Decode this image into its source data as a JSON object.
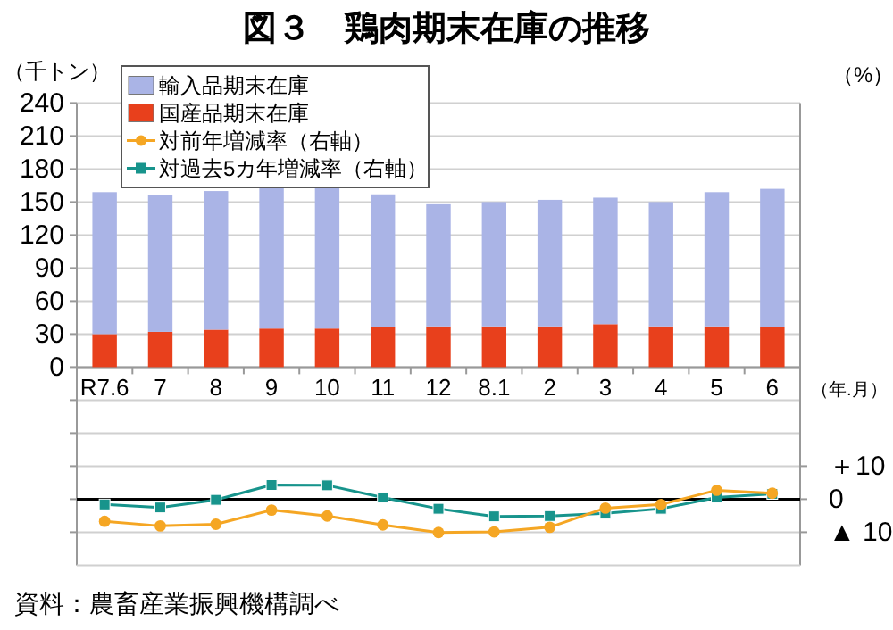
{
  "chart_data": {
    "type": "bar",
    "title": "図３　鶏肉期末在庫の推移",
    "xlabel": "（年.月）",
    "ylabel": "（千トン）",
    "y2label": "（%）",
    "annotations": [
      "資料：農畜産業振興機構調べ"
    ],
    "categories": [
      "R7.6",
      "7",
      "8",
      "9",
      "10",
      "11",
      "12",
      "8.1",
      "2",
      "3",
      "4",
      "5",
      "6"
    ],
    "stacked": true,
    "series": [
      {
        "name": "国産品期末在庫",
        "color": "#e8401c",
        "values": [
          30,
          32,
          34,
          35,
          35,
          36,
          37,
          37,
          37,
          39,
          37,
          37,
          36
        ]
      },
      {
        "name": "輸入品期末在庫",
        "color": "#aab4e6",
        "values": [
          129,
          124,
          126,
          130,
          130,
          121,
          111,
          113,
          115,
          115,
          113,
          122,
          126
        ]
      },
      {
        "name": "対前年増減率（右軸）",
        "type": "line",
        "axis": "y2",
        "marker": "circle",
        "color": "#f5a623",
        "values": [
          -6.7,
          -8.1,
          -7.6,
          -3.3,
          -5.1,
          -7.8,
          -10.1,
          -9.9,
          -8.5,
          -2.7,
          -1.6,
          2.7,
          1.8
        ]
      },
      {
        "name": "対過去5カ年増減率（右軸）",
        "type": "line",
        "axis": "y2",
        "marker": "square",
        "color": "#17948c",
        "values": [
          -1.6,
          -2.5,
          -0.2,
          4.3,
          4.2,
          0.5,
          -2.9,
          -5.2,
          -5.1,
          -4.3,
          -2.9,
          0.5,
          1.6
        ]
      }
    ],
    "ylim": [
      -180,
      240
    ],
    "yticks": [
      {
        "value": -150,
        "label": null
      },
      {
        "value": -120,
        "label": null
      },
      {
        "value": -90,
        "label": null
      },
      {
        "value": -60,
        "label": null
      },
      {
        "value": -30,
        "label": null
      },
      0,
      30,
      60,
      90,
      120,
      150,
      180,
      210,
      240
    ],
    "y2lim": [
      -20,
      120
    ],
    "y2ticks": [
      {
        "value": -10,
        "label": "▲ 10"
      },
      0,
      {
        "value": 10,
        "label": "＋10"
      }
    ],
    "ref_lines": [
      {
        "axis": "y2",
        "value": 0,
        "color": "#000000"
      }
    ],
    "grid": "y",
    "legend": "top left"
  }
}
